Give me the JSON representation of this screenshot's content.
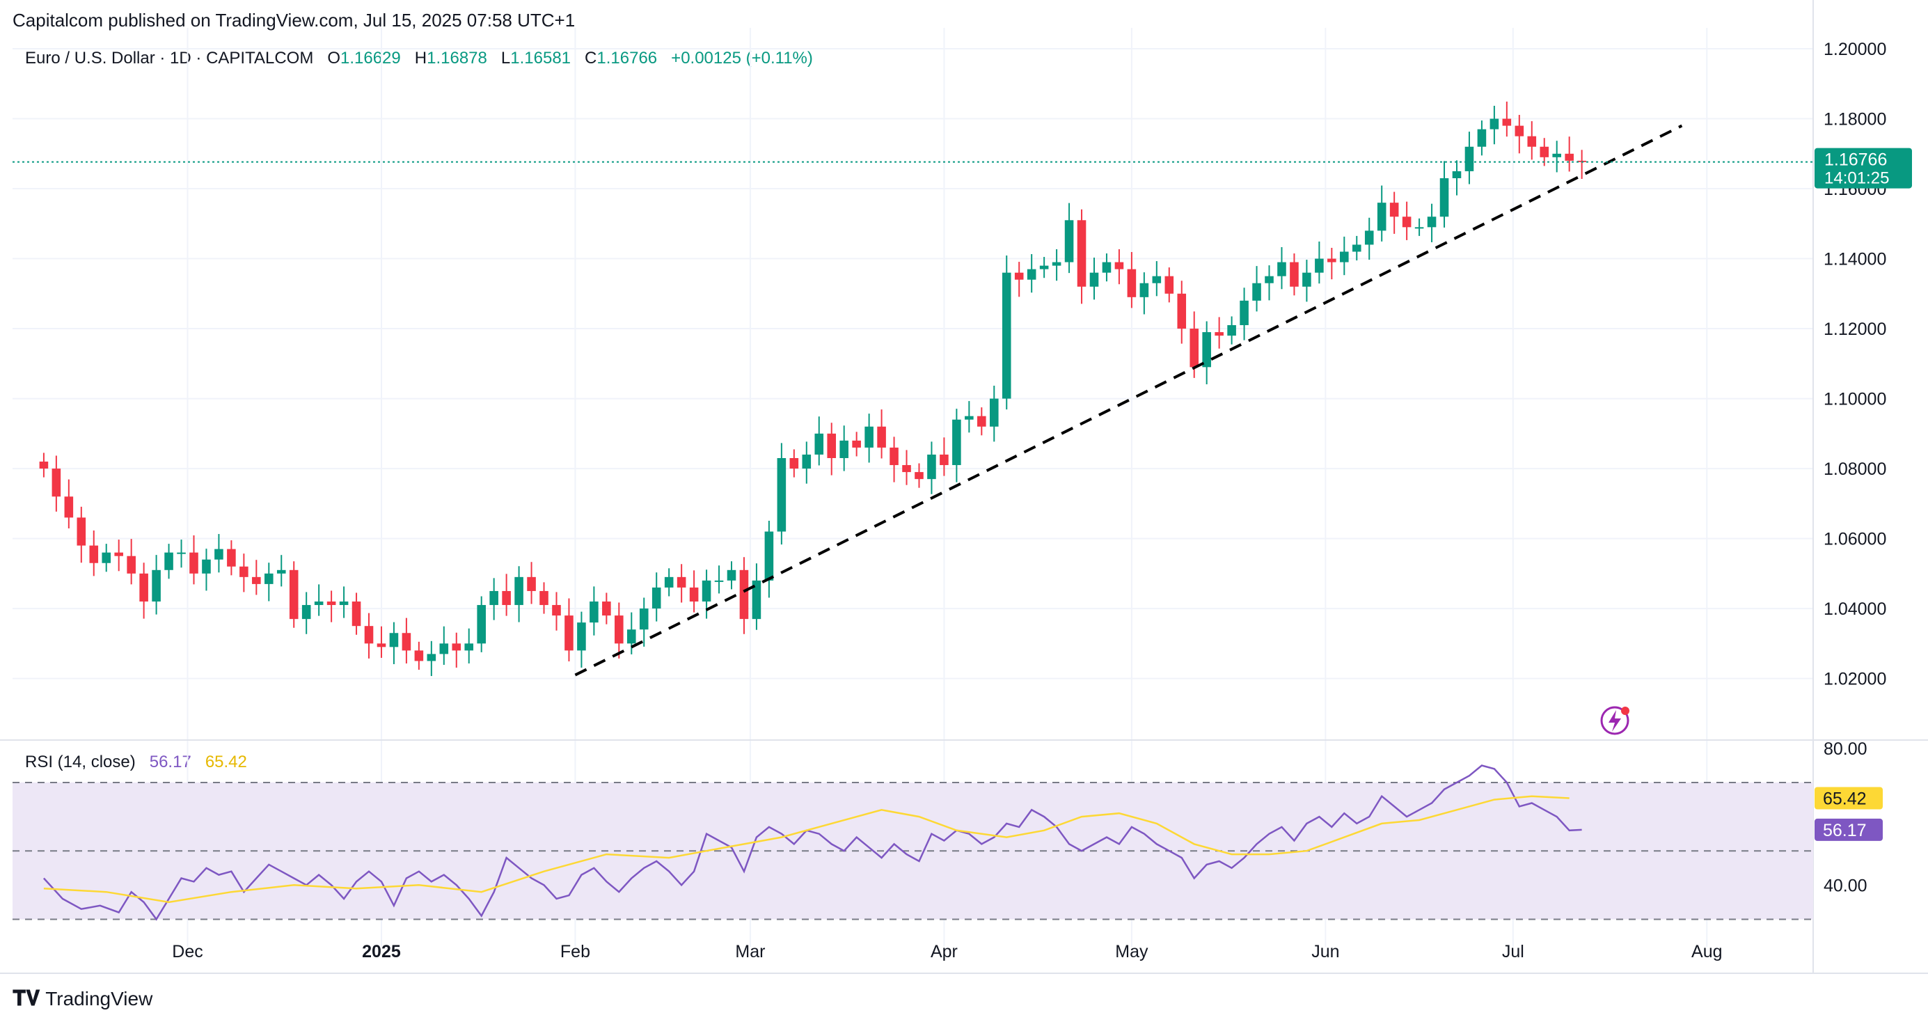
{
  "header": {
    "published_by": "Capitalcom published on TradingView.com, Jul 15, 2025 07:58 UTC+1"
  },
  "footer": {
    "brand": "TradingView",
    "logo_icon": "tradingview-logo-icon"
  },
  "legend": {
    "symbol": "Euro / U.S. Dollar · 1D · CAPITALCOM",
    "open_label": "O",
    "open": "1.16629",
    "high_label": "H",
    "high": "1.16878",
    "low_label": "L",
    "low": "1.16581",
    "close_label": "C",
    "close": "1.16766",
    "change": "+0.00125 (+0.11%)"
  },
  "price_tag": {
    "price": "1.16766",
    "countdown": "14:01:25"
  },
  "rsi_legend": {
    "title": "RSI (14, close)",
    "rsi": "56.17",
    "ma": "65.42"
  },
  "colors": {
    "up": "#089981",
    "down": "#f23645",
    "trendline": "#000000",
    "rsi_line": "#7e57c2",
    "rsi_ma": "#fdd835",
    "rsi_band": "#ede7f6",
    "grid": "#f0f3fa",
    "axis_text": "#131722"
  },
  "chart_data": [
    {
      "type": "candlestick",
      "title": "",
      "price_ticks": [
        "1.20000",
        "1.18000",
        "1.16000",
        "1.14000",
        "1.12000",
        "1.10000",
        "1.08000",
        "1.06000",
        "1.04000",
        "1.02000"
      ],
      "ylim": [
        1.003,
        1.202
      ],
      "x_ticks": [
        "Dec",
        "2025",
        "Feb",
        "Mar",
        "Apr",
        "May",
        "Jun",
        "Jul",
        "Aug"
      ],
      "x_tick_days": [
        23,
        54,
        85,
        113,
        144,
        174,
        205,
        235,
        266
      ],
      "xlim_days": [
        -5,
        283
      ],
      "ohlc_close_series": [
        [
          0,
          1.08
        ],
        [
          2,
          1.072
        ],
        [
          4,
          1.066
        ],
        [
          6,
          1.058
        ],
        [
          8,
          1.053
        ],
        [
          10,
          1.056
        ],
        [
          12,
          1.055
        ],
        [
          14,
          1.05
        ],
        [
          16,
          1.042
        ],
        [
          18,
          1.051
        ],
        [
          20,
          1.056
        ],
        [
          22,
          1.056
        ],
        [
          24,
          1.05
        ],
        [
          26,
          1.054
        ],
        [
          28,
          1.057
        ],
        [
          30,
          1.052
        ],
        [
          32,
          1.049
        ],
        [
          34,
          1.047
        ],
        [
          36,
          1.05
        ],
        [
          38,
          1.051
        ],
        [
          40,
          1.037
        ],
        [
          42,
          1.041
        ],
        [
          44,
          1.042
        ],
        [
          46,
          1.041
        ],
        [
          48,
          1.042
        ],
        [
          50,
          1.035
        ],
        [
          52,
          1.03
        ],
        [
          54,
          1.029
        ],
        [
          56,
          1.033
        ],
        [
          58,
          1.028
        ],
        [
          60,
          1.025
        ],
        [
          62,
          1.027
        ],
        [
          64,
          1.03
        ],
        [
          66,
          1.028
        ],
        [
          68,
          1.03
        ],
        [
          70,
          1.041
        ],
        [
          72,
          1.045
        ],
        [
          74,
          1.041
        ],
        [
          76,
          1.049
        ],
        [
          78,
          1.045
        ],
        [
          80,
          1.041
        ],
        [
          82,
          1.038
        ],
        [
          84,
          1.028
        ],
        [
          86,
          1.036
        ],
        [
          88,
          1.042
        ],
        [
          90,
          1.038
        ],
        [
          92,
          1.03
        ],
        [
          94,
          1.034
        ],
        [
          96,
          1.04
        ],
        [
          98,
          1.046
        ],
        [
          100,
          1.049
        ],
        [
          102,
          1.046
        ],
        [
          104,
          1.042
        ],
        [
          106,
          1.048
        ],
        [
          108,
          1.048
        ],
        [
          110,
          1.051
        ],
        [
          112,
          1.037
        ],
        [
          114,
          1.048
        ],
        [
          116,
          1.062
        ],
        [
          118,
          1.083
        ],
        [
          120,
          1.08
        ],
        [
          122,
          1.084
        ],
        [
          124,
          1.09
        ],
        [
          126,
          1.083
        ],
        [
          128,
          1.088
        ],
        [
          130,
          1.086
        ],
        [
          132,
          1.092
        ],
        [
          134,
          1.086
        ],
        [
          136,
          1.081
        ],
        [
          138,
          1.079
        ],
        [
          140,
          1.077
        ],
        [
          142,
          1.084
        ],
        [
          144,
          1.081
        ],
        [
          146,
          1.094
        ],
        [
          148,
          1.095
        ],
        [
          150,
          1.092
        ],
        [
          152,
          1.1
        ],
        [
          154,
          1.136
        ],
        [
          156,
          1.134
        ],
        [
          158,
          1.137
        ],
        [
          160,
          1.138
        ],
        [
          162,
          1.139
        ],
        [
          164,
          1.151
        ],
        [
          166,
          1.132
        ],
        [
          168,
          1.136
        ],
        [
          170,
          1.139
        ],
        [
          172,
          1.137
        ],
        [
          174,
          1.129
        ],
        [
          176,
          1.133
        ],
        [
          178,
          1.135
        ],
        [
          180,
          1.13
        ],
        [
          182,
          1.12
        ],
        [
          184,
          1.109
        ],
        [
          186,
          1.119
        ],
        [
          188,
          1.118
        ],
        [
          190,
          1.121
        ],
        [
          192,
          1.128
        ],
        [
          194,
          1.133
        ],
        [
          196,
          1.135
        ],
        [
          198,
          1.139
        ],
        [
          200,
          1.132
        ],
        [
          202,
          1.136
        ],
        [
          204,
          1.14
        ],
        [
          206,
          1.139
        ],
        [
          208,
          1.142
        ],
        [
          210,
          1.144
        ],
        [
          212,
          1.148
        ],
        [
          214,
          1.156
        ],
        [
          216,
          1.152
        ],
        [
          218,
          1.149
        ],
        [
          220,
          1.149
        ],
        [
          222,
          1.152
        ],
        [
          224,
          1.163
        ],
        [
          226,
          1.165
        ],
        [
          228,
          1.172
        ],
        [
          230,
          1.177
        ],
        [
          232,
          1.18
        ],
        [
          234,
          1.178
        ],
        [
          236,
          1.175
        ],
        [
          238,
          1.172
        ],
        [
          240,
          1.169
        ],
        [
          242,
          1.17
        ],
        [
          244,
          1.168
        ],
        [
          246,
          1.1677
        ]
      ],
      "trendline": {
        "from": [
          85,
          1.021
        ],
        "to": [
          262,
          1.178
        ],
        "style": "dashed"
      },
      "last_price_line": 1.16766
    },
    {
      "type": "line",
      "title": "RSI (14, close)",
      "y_ticks": [
        "80.00",
        "40.00"
      ],
      "ylim": [
        25,
        81
      ],
      "bands": {
        "upper": 70,
        "middle": 50,
        "lower": 30
      },
      "series": [
        {
          "name": "RSI",
          "values": [
            [
              0,
              42
            ],
            [
              3,
              36
            ],
            [
              6,
              33
            ],
            [
              9,
              34
            ],
            [
              12,
              32
            ],
            [
              14,
              38
            ],
            [
              16,
              35
            ],
            [
              18,
              30
            ],
            [
              20,
              36
            ],
            [
              22,
              42
            ],
            [
              24,
              41
            ],
            [
              26,
              45
            ],
            [
              28,
              43
            ],
            [
              30,
              44
            ],
            [
              32,
              38
            ],
            [
              34,
              42
            ],
            [
              36,
              46
            ],
            [
              38,
              44
            ],
            [
              40,
              42
            ],
            [
              42,
              40
            ],
            [
              44,
              43
            ],
            [
              46,
              40
            ],
            [
              48,
              36
            ],
            [
              50,
              41
            ],
            [
              52,
              44
            ],
            [
              54,
              41
            ],
            [
              56,
              34
            ],
            [
              58,
              42
            ],
            [
              60,
              44
            ],
            [
              62,
              41
            ],
            [
              64,
              43
            ],
            [
              66,
              40
            ],
            [
              68,
              36
            ],
            [
              70,
              31
            ],
            [
              72,
              38
            ],
            [
              74,
              48
            ],
            [
              76,
              45
            ],
            [
              78,
              42
            ],
            [
              80,
              40
            ],
            [
              82,
              36
            ],
            [
              84,
              37
            ],
            [
              86,
              43
            ],
            [
              88,
              45
            ],
            [
              90,
              41
            ],
            [
              92,
              38
            ],
            [
              94,
              42
            ],
            [
              96,
              45
            ],
            [
              98,
              47
            ],
            [
              100,
              44
            ],
            [
              102,
              40
            ],
            [
              104,
              44
            ],
            [
              106,
              55
            ],
            [
              108,
              53
            ],
            [
              110,
              51
            ],
            [
              112,
              44
            ],
            [
              114,
              54
            ],
            [
              116,
              57
            ],
            [
              118,
              55
            ],
            [
              120,
              52
            ],
            [
              122,
              56
            ],
            [
              124,
              55
            ],
            [
              126,
              52
            ],
            [
              128,
              50
            ],
            [
              130,
              54
            ],
            [
              132,
              51
            ],
            [
              134,
              48
            ],
            [
              136,
              52
            ],
            [
              138,
              49
            ],
            [
              140,
              47
            ],
            [
              142,
              55
            ],
            [
              144,
              53
            ],
            [
              146,
              56
            ],
            [
              148,
              55
            ],
            [
              150,
              52
            ],
            [
              152,
              54
            ],
            [
              154,
              58
            ],
            [
              156,
              57
            ],
            [
              158,
              62
            ],
            [
              160,
              60
            ],
            [
              162,
              57
            ],
            [
              164,
              52
            ],
            [
              166,
              50
            ],
            [
              168,
              52
            ],
            [
              170,
              54
            ],
            [
              172,
              52
            ],
            [
              174,
              57
            ],
            [
              176,
              55
            ],
            [
              178,
              52
            ],
            [
              180,
              50
            ],
            [
              182,
              48
            ],
            [
              184,
              42
            ],
            [
              186,
              46
            ],
            [
              188,
              47
            ],
            [
              190,
              45
            ],
            [
              192,
              48
            ],
            [
              194,
              52
            ],
            [
              196,
              55
            ],
            [
              198,
              57
            ],
            [
              200,
              53
            ],
            [
              202,
              58
            ],
            [
              204,
              60
            ],
            [
              206,
              57
            ],
            [
              208,
              61
            ],
            [
              210,
              58
            ],
            [
              212,
              60
            ],
            [
              214,
              66
            ],
            [
              216,
              63
            ],
            [
              218,
              60
            ],
            [
              220,
              62
            ],
            [
              222,
              64
            ],
            [
              224,
              68
            ],
            [
              226,
              70
            ],
            [
              228,
              72
            ],
            [
              230,
              75
            ],
            [
              232,
              74
            ],
            [
              234,
              70
            ],
            [
              236,
              63
            ],
            [
              238,
              64
            ],
            [
              240,
              62
            ],
            [
              242,
              60
            ],
            [
              244,
              56
            ],
            [
              246,
              56.17
            ]
          ]
        },
        {
          "name": "RSI-based MA",
          "values": [
            [
              0,
              39
            ],
            [
              10,
              38
            ],
            [
              20,
              35
            ],
            [
              30,
              38
            ],
            [
              40,
              40
            ],
            [
              50,
              39
            ],
            [
              60,
              40
            ],
            [
              70,
              38
            ],
            [
              80,
              44
            ],
            [
              90,
              49
            ],
            [
              100,
              48
            ],
            [
              106,
              50
            ],
            [
              112,
              52
            ],
            [
              118,
              54
            ],
            [
              126,
              58
            ],
            [
              134,
              62
            ],
            [
              140,
              60
            ],
            [
              146,
              56
            ],
            [
              154,
              54
            ],
            [
              160,
              56
            ],
            [
              166,
              60
            ],
            [
              172,
              61
            ],
            [
              178,
              58
            ],
            [
              184,
              52
            ],
            [
              190,
              49
            ],
            [
              196,
              49
            ],
            [
              202,
              50
            ],
            [
              208,
              54
            ],
            [
              214,
              58
            ],
            [
              220,
              59
            ],
            [
              226,
              62
            ],
            [
              232,
              65
            ],
            [
              238,
              66
            ],
            [
              244,
              65.42
            ]
          ]
        }
      ]
    }
  ]
}
